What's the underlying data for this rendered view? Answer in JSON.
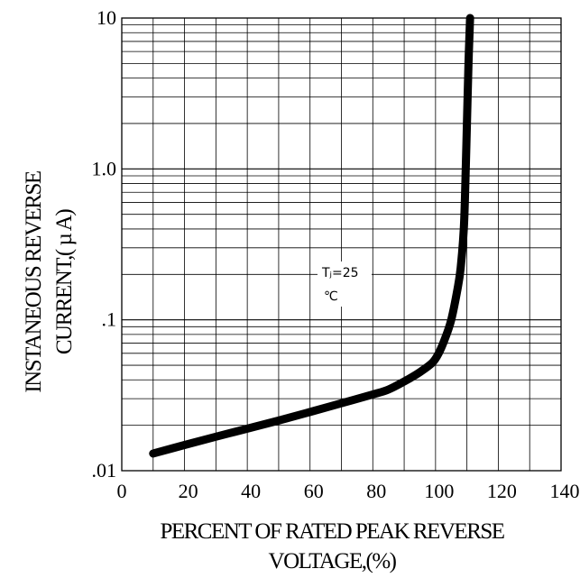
{
  "chart_data": {
    "type": "line",
    "yscale": "log",
    "xlim": [
      0,
      140
    ],
    "ylim": [
      0.01,
      10
    ],
    "grid": true,
    "x_ticks": [
      "0",
      "20",
      "40",
      "60",
      "80",
      "100",
      "120",
      "140"
    ],
    "y_ticks": [
      ".01",
      ".1",
      "1.0",
      "10"
    ],
    "xlabel": [
      "PERCENT OF RATED PEAK REVERSE",
      "VOLTAGE,(%)"
    ],
    "ylabel": [
      "INSTANEOUS REVERSE",
      "CURRENT,( µ A)"
    ],
    "annotation": [
      "Tⱼ=25",
      "℃"
    ],
    "series": [
      {
        "x": [
          10,
          20,
          30,
          40,
          50,
          60,
          70,
          80,
          85,
          90,
          95,
          99,
          101,
          103,
          105,
          107,
          108,
          109,
          109.5,
          110,
          110.5,
          111
        ],
        "y": [
          0.013,
          0.0148,
          0.0168,
          0.019,
          0.0215,
          0.0245,
          0.028,
          0.032,
          0.0345,
          0.039,
          0.045,
          0.052,
          0.06,
          0.075,
          0.1,
          0.16,
          0.22,
          0.4,
          0.8,
          2.0,
          5.0,
          10.0
        ]
      }
    ]
  }
}
